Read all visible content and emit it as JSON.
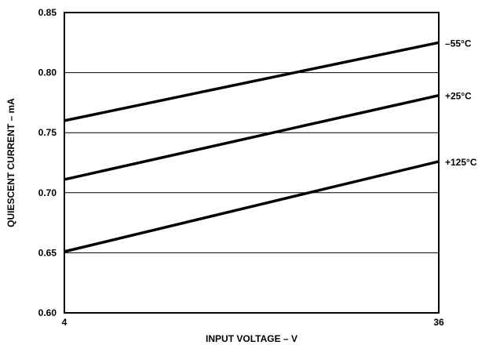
{
  "chart_data": {
    "type": "line",
    "title": "",
    "xlabel": "INPUT VOLTAGE – V",
    "ylabel": "QUIESCENT CURRENT – mA",
    "xlim": [
      4,
      36
    ],
    "ylim": [
      0.6,
      0.85
    ],
    "x_ticks": [
      "4",
      "36"
    ],
    "y_ticks": [
      "0.85",
      "0.80",
      "0.75",
      "0.70",
      "0.65",
      "0.60"
    ],
    "grid": "horizontal",
    "series": [
      {
        "name": "–55°C",
        "x": [
          4,
          36
        ],
        "y": [
          0.76,
          0.825
        ]
      },
      {
        "name": "+25°C",
        "x": [
          4,
          36
        ],
        "y": [
          0.711,
          0.781
        ]
      },
      {
        "name": "+125°C",
        "x": [
          4,
          36
        ],
        "y": [
          0.651,
          0.726
        ]
      }
    ],
    "colors": {
      "line": "#000000",
      "grid": "#000000"
    }
  }
}
